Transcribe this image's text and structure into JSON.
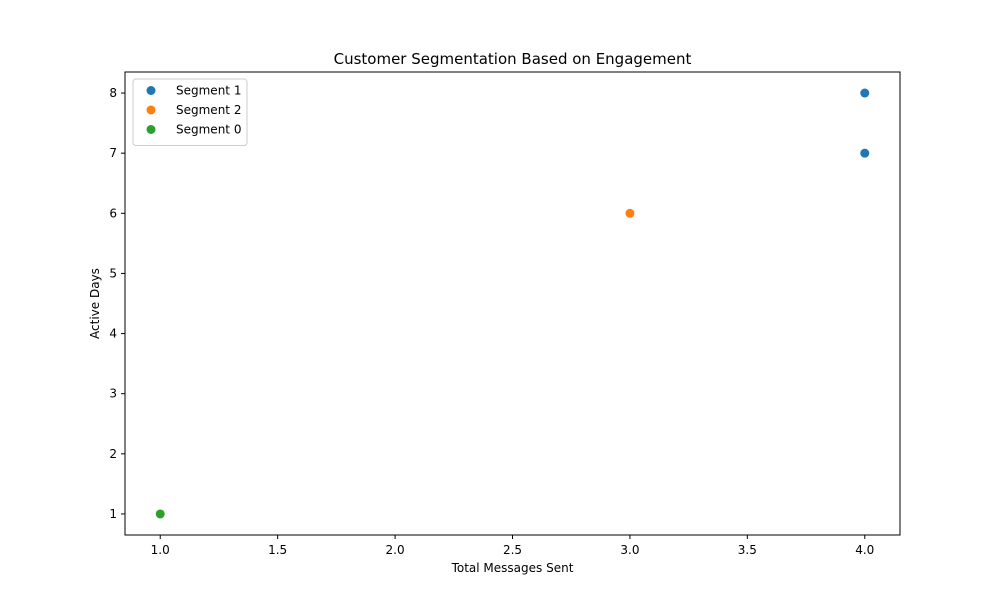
{
  "chart_data": {
    "type": "scatter",
    "title": "Customer Segmentation Based on Engagement",
    "xlabel": "Total Messages Sent",
    "ylabel": "Active Days",
    "xlim": [
      0.85,
      4.15
    ],
    "ylim": [
      0.65,
      8.35
    ],
    "x_ticks": [
      1.0,
      1.5,
      2.0,
      2.5,
      3.0,
      3.5,
      4.0
    ],
    "x_tick_labels": [
      "1.0",
      "1.5",
      "2.0",
      "2.5",
      "3.0",
      "3.5",
      "4.0"
    ],
    "y_ticks": [
      1,
      2,
      3,
      4,
      5,
      6,
      7,
      8
    ],
    "y_tick_labels": [
      "1",
      "2",
      "3",
      "4",
      "5",
      "6",
      "7",
      "8"
    ],
    "grid": false,
    "legend_position": "top-left",
    "series": [
      {
        "name": "Segment 1",
        "color": "#1f77b4",
        "points": [
          {
            "x": 4.0,
            "y": 8
          },
          {
            "x": 4.0,
            "y": 7
          }
        ]
      },
      {
        "name": "Segment 2",
        "color": "#ff7f0e",
        "points": [
          {
            "x": 3.0,
            "y": 6
          }
        ]
      },
      {
        "name": "Segment 0",
        "color": "#2ca02c",
        "points": [
          {
            "x": 1.0,
            "y": 1
          }
        ]
      }
    ]
  }
}
